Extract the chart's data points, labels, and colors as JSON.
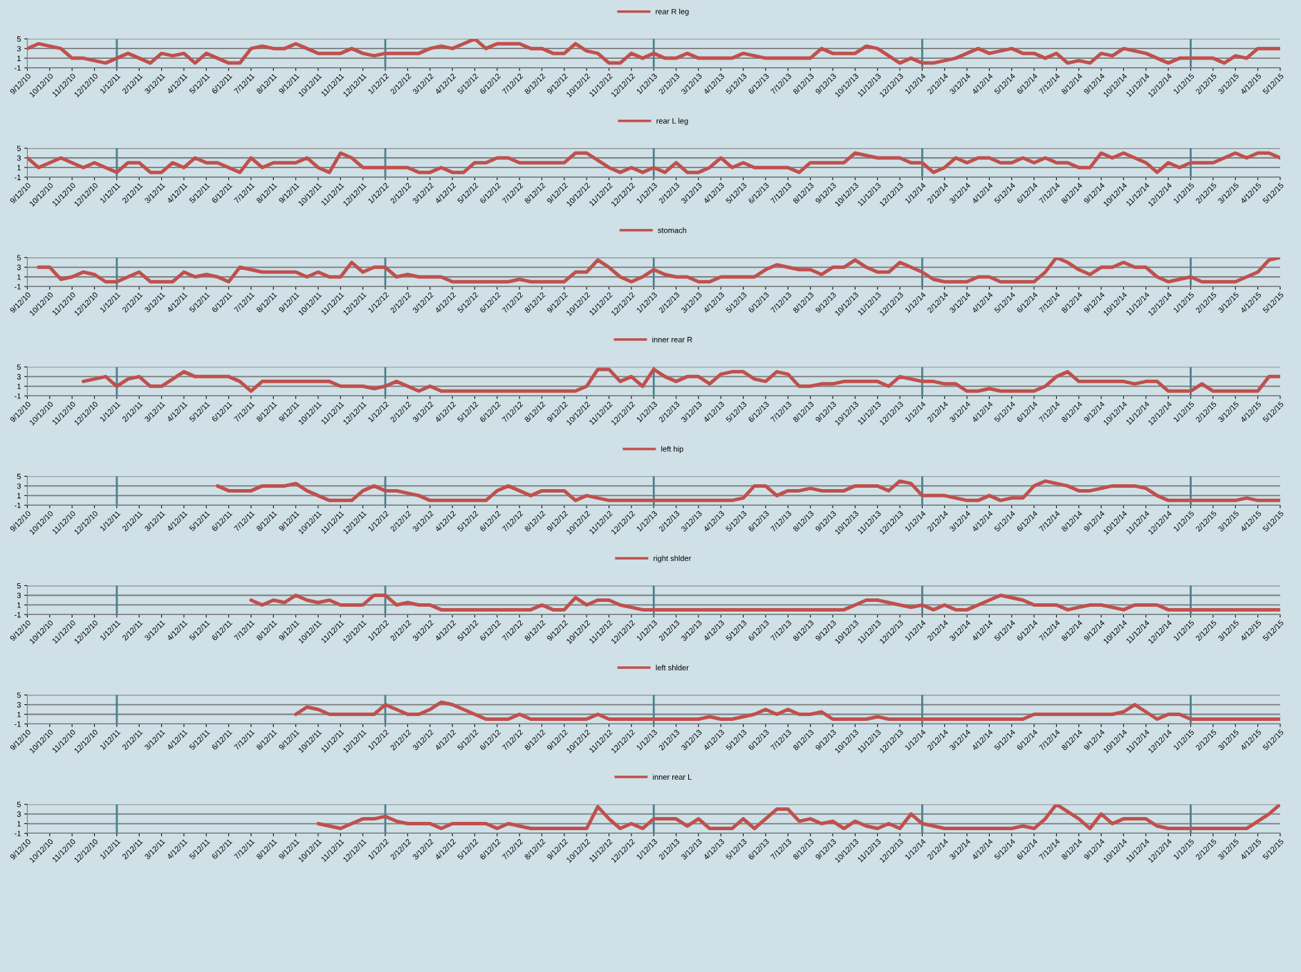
{
  "chart_data": [
    {
      "type": "line",
      "categories": [
        "9/12/10",
        null,
        "10/12/10",
        null,
        "11/12/10",
        null,
        "12/12/10",
        null,
        "1/12/11",
        null,
        "2/12/11",
        null,
        "3/12/11",
        null,
        "4/12/11",
        null,
        "5/12/11",
        null,
        "6/12/11",
        null,
        "7/12/11",
        null,
        "8/12/11",
        null,
        "9/12/11",
        null,
        "10/12/11",
        null,
        "11/12/11",
        null,
        "12/12/11",
        null,
        "1/12/12",
        null,
        "2/12/12",
        null,
        "3/12/12",
        null,
        "4/12/12",
        null,
        "5/12/12",
        null,
        "6/12/12",
        null,
        "7/12/12",
        null,
        "8/12/12",
        null,
        "9/12/12",
        null,
        "10/12/12",
        null,
        "11/12/12",
        null,
        "12/12/12",
        null,
        "1/12/13",
        null,
        "2/12/13",
        null,
        "3/12/13",
        null,
        "4/12/13",
        null,
        "5/12/13",
        null,
        "6/12/13",
        null,
        "7/12/13",
        null,
        "8/12/13",
        null,
        "9/12/13",
        null,
        "10/12/13",
        null,
        "11/12/13",
        null,
        "12/12/13",
        null,
        "1/12/14",
        null,
        "2/12/14",
        null,
        "3/12/14",
        null,
        "4/12/14",
        null,
        "5/12/14",
        null,
        "6/12/14",
        null,
        "7/12/14",
        null,
        "8/12/14",
        null,
        "9/12/14",
        null,
        "10/12/14",
        null,
        "11/12/14",
        null,
        "12/12/14",
        null,
        "1/12/15",
        null,
        "2/12/15",
        null,
        "3/12/15",
        null,
        "4/12/15",
        null,
        "5/12/15"
      ],
      "series": [
        {
          "name": "rear R leg",
          "color": "#c0504d",
          "values": [
            3,
            4,
            3.5,
            3,
            1,
            1,
            0.5,
            0,
            1,
            2,
            1,
            0,
            2,
            1.5,
            2,
            0,
            2,
            1,
            0,
            0,
            3,
            3.5,
            3,
            3,
            4,
            3,
            2,
            2,
            2,
            3,
            2,
            1.5,
            2,
            2,
            2,
            2,
            3,
            3.5,
            3,
            4,
            5,
            3,
            4,
            4,
            4,
            3,
            3,
            2,
            2,
            4,
            2.5,
            2,
            0,
            0,
            2,
            1,
            2,
            1,
            1,
            2,
            1,
            1,
            1,
            1,
            2,
            1.5,
            1,
            1,
            1,
            1,
            1,
            3,
            2,
            2,
            2,
            3.5,
            3,
            1.5,
            0,
            1,
            0,
            0,
            0.5,
            1,
            2,
            3,
            2,
            2.5,
            3,
            2,
            2,
            1,
            2,
            0,
            0.5,
            0,
            2,
            1.5,
            3,
            2.5,
            2,
            1,
            0,
            1,
            1,
            1,
            1,
            0,
            1.5,
            1,
            3,
            3,
            3
          ]
        }
      ],
      "ylim": [
        -1,
        5
      ],
      "yticks": [
        -1,
        1,
        3,
        5
      ],
      "grid": "y",
      "legend": "top",
      "ref_lines": [
        {
          "axis": "x",
          "value": "1/12/11"
        },
        {
          "axis": "x",
          "value": "1/12/12"
        },
        {
          "axis": "x",
          "value": "1/12/13"
        },
        {
          "axis": "x",
          "value": "1/12/14"
        },
        {
          "axis": "x",
          "value": "1/12/15"
        }
      ]
    },
    {
      "type": "line",
      "categories": [
        "9/12/10",
        null,
        "10/12/10",
        null,
        "11/12/10",
        null,
        "12/12/10",
        null,
        "1/12/11",
        null,
        "2/12/11",
        null,
        "3/12/11",
        null,
        "4/12/11",
        null,
        "5/12/11",
        null,
        "6/12/11",
        null,
        "7/12/11",
        null,
        "8/12/11",
        null,
        "9/12/11",
        null,
        "10/12/11",
        null,
        "11/12/11",
        null,
        "12/12/11",
        null,
        "1/12/12",
        null,
        "2/12/12",
        null,
        "3/12/12",
        null,
        "4/12/12",
        null,
        "5/12/12",
        null,
        "6/12/12",
        null,
        "7/12/12",
        null,
        "8/12/12",
        null,
        "9/12/12",
        null,
        "10/12/12",
        null,
        "11/12/12",
        null,
        "12/12/12",
        null,
        "1/12/13",
        null,
        "2/12/13",
        null,
        "3/12/13",
        null,
        "4/12/13",
        null,
        "5/12/13",
        null,
        "6/12/13",
        null,
        "7/12/13",
        null,
        "8/12/13",
        null,
        "9/12/13",
        null,
        "10/12/13",
        null,
        "11/12/13",
        null,
        "12/12/13",
        null,
        "1/12/14",
        null,
        "2/12/14",
        null,
        "3/12/14",
        null,
        "4/12/14",
        null,
        "5/12/14",
        null,
        "6/12/14",
        null,
        "7/12/14",
        null,
        "8/12/14",
        null,
        "9/12/14",
        null,
        "10/12/14",
        null,
        "11/12/14",
        null,
        "12/12/14",
        null,
        "1/12/15",
        null,
        "2/12/15",
        null,
        "3/12/15",
        null,
        "4/12/15",
        null,
        "5/12/15"
      ],
      "series": [
        {
          "name": "rear L leg",
          "color": "#c0504d",
          "values": [
            3,
            1,
            2,
            3,
            2,
            1,
            2,
            1,
            0,
            2,
            2,
            0,
            0,
            2,
            1,
            3,
            2,
            2,
            1,
            0,
            3,
            1,
            2,
            2,
            2,
            3,
            1,
            0,
            4,
            3,
            1,
            1,
            1,
            1,
            1,
            0,
            0,
            1,
            0,
            0,
            2,
            2,
            3,
            3,
            2,
            2,
            2,
            2,
            2,
            4,
            4,
            2.5,
            1,
            0,
            1,
            0,
            1,
            0,
            2,
            0,
            0,
            1,
            3,
            1,
            2,
            1,
            1,
            1,
            1,
            0,
            2,
            2,
            2,
            2,
            4,
            3.5,
            3,
            3,
            3,
            2,
            2,
            0,
            1,
            3,
            2,
            3,
            3,
            2,
            2,
            3,
            2,
            3,
            2,
            2,
            1,
            1,
            4,
            3,
            4,
            3,
            2,
            0,
            2,
            1,
            2,
            2,
            2,
            3,
            4,
            3,
            4,
            4,
            3
          ]
        }
      ],
      "ylim": [
        -1,
        5
      ],
      "yticks": [
        -1,
        1,
        3,
        5
      ],
      "grid": "y",
      "legend": "top",
      "ref_lines": [
        {
          "axis": "x",
          "value": "1/12/11"
        },
        {
          "axis": "x",
          "value": "1/12/12"
        },
        {
          "axis": "x",
          "value": "1/12/13"
        },
        {
          "axis": "x",
          "value": "1/12/14"
        },
        {
          "axis": "x",
          "value": "1/12/15"
        }
      ]
    },
    {
      "type": "line",
      "categories": [
        "9/12/10",
        null,
        "10/12/10",
        null,
        "11/12/10",
        null,
        "12/12/10",
        null,
        "1/12/11",
        null,
        "2/12/11",
        null,
        "3/12/11",
        null,
        "4/12/11",
        null,
        "5/12/11",
        null,
        "6/12/11",
        null,
        "7/12/11",
        null,
        "8/12/11",
        null,
        "9/12/11",
        null,
        "10/12/11",
        null,
        "11/12/11",
        null,
        "12/12/11",
        null,
        "1/12/12",
        null,
        "2/12/12",
        null,
        "3/12/12",
        null,
        "4/12/12",
        null,
        "5/12/12",
        null,
        "6/12/12",
        null,
        "7/12/12",
        null,
        "8/12/12",
        null,
        "9/12/12",
        null,
        "10/12/12",
        null,
        "11/12/12",
        null,
        "12/12/12",
        null,
        "1/12/13",
        null,
        "2/12/13",
        null,
        "3/12/13",
        null,
        "4/12/13",
        null,
        "5/12/13",
        null,
        "6/12/13",
        null,
        "7/12/13",
        null,
        "8/12/13",
        null,
        "9/12/13",
        null,
        "10/12/13",
        null,
        "11/12/13",
        null,
        "12/12/13",
        null,
        "1/12/14",
        null,
        "2/12/14",
        null,
        "3/12/14",
        null,
        "4/12/14",
        null,
        "5/12/14",
        null,
        "6/12/14",
        null,
        "7/12/14",
        null,
        "8/12/14",
        null,
        "9/12/14",
        null,
        "10/12/14",
        null,
        "11/12/14",
        null,
        "12/12/14",
        null,
        "1/12/15",
        null,
        "2/12/15",
        null,
        "3/12/15",
        null,
        "4/12/15",
        null,
        "5/12/15"
      ],
      "series": [
        {
          "name": "stomach",
          "color": "#c0504d",
          "values": [
            null,
            3,
            3,
            0.5,
            1,
            2,
            1.5,
            0,
            0,
            1,
            2,
            0,
            0,
            0,
            2,
            1,
            1.5,
            1,
            0,
            3,
            2.5,
            2,
            2,
            2,
            2,
            1,
            2,
            1,
            1,
            4,
            2,
            3,
            3,
            1,
            1.5,
            1,
            1,
            1,
            0,
            0,
            0,
            0,
            0,
            0,
            0.5,
            0,
            0,
            0,
            0,
            2,
            2,
            4.5,
            3,
            1,
            0,
            1,
            2.5,
            1.5,
            1,
            1,
            0,
            0,
            1,
            1,
            1,
            1,
            2.5,
            3.5,
            3,
            2.5,
            2.5,
            1.5,
            3,
            3,
            4.5,
            3,
            2,
            2,
            4,
            3,
            2,
            0.5,
            0,
            0,
            0,
            1,
            1,
            0,
            0,
            0,
            0,
            2,
            5,
            4,
            2.5,
            1.5,
            3,
            3,
            4,
            3,
            3,
            1,
            0,
            0.5,
            1,
            0,
            0,
            0,
            0,
            1,
            2,
            4.5,
            5
          ]
        }
      ],
      "ylim": [
        -1,
        5
      ],
      "yticks": [
        -1,
        1,
        3,
        5
      ],
      "grid": "y",
      "legend": "top",
      "ref_lines": [
        {
          "axis": "x",
          "value": "1/12/11"
        },
        {
          "axis": "x",
          "value": "1/12/12"
        },
        {
          "axis": "x",
          "value": "1/12/13"
        },
        {
          "axis": "x",
          "value": "1/12/14"
        },
        {
          "axis": "x",
          "value": "1/12/15"
        }
      ]
    },
    {
      "type": "line",
      "categories": [
        "9/12/10",
        null,
        "10/12/10",
        null,
        "11/12/10",
        null,
        "12/12/10",
        null,
        "1/12/11",
        null,
        "2/12/11",
        null,
        "3/12/11",
        null,
        "4/12/11",
        null,
        "5/12/11",
        null,
        "6/12/11",
        null,
        "7/12/11",
        null,
        "8/12/11",
        null,
        "9/12/11",
        null,
        "10/12/11",
        null,
        "11/12/11",
        null,
        "12/12/11",
        null,
        "1/12/12",
        null,
        "2/12/12",
        null,
        "3/12/12",
        null,
        "4/12/12",
        null,
        "5/12/12",
        null,
        "6/12/12",
        null,
        "7/12/12",
        null,
        "8/12/12",
        null,
        "9/12/12",
        null,
        "10/12/12",
        null,
        "11/12/12",
        null,
        "12/12/12",
        null,
        "1/12/13",
        null,
        "2/12/13",
        null,
        "3/12/13",
        null,
        "4/12/13",
        null,
        "5/12/13",
        null,
        "6/12/13",
        null,
        "7/12/13",
        null,
        "8/12/13",
        null,
        "9/12/13",
        null,
        "10/12/13",
        null,
        "11/12/13",
        null,
        "12/12/13",
        null,
        "1/12/14",
        null,
        "2/12/14",
        null,
        "3/12/14",
        null,
        "4/12/14",
        null,
        "5/12/14",
        null,
        "6/12/14",
        null,
        "7/12/14",
        null,
        "8/12/14",
        null,
        "9/12/14",
        null,
        "10/12/14",
        null,
        "11/12/14",
        null,
        "12/12/14",
        null,
        "1/12/15",
        null,
        "2/12/15",
        null,
        "3/12/15",
        null,
        "4/12/15",
        null,
        "5/12/15"
      ],
      "series": [
        {
          "name": "inner rear R",
          "color": "#c0504d",
          "values": [
            null,
            null,
            null,
            null,
            null,
            2,
            2.5,
            3,
            1,
            2.5,
            3,
            1,
            1,
            2.5,
            4,
            3,
            3,
            3,
            3,
            2,
            0,
            2,
            2,
            2,
            2,
            2,
            2,
            2,
            1,
            1,
            1,
            0.5,
            1,
            2,
            1,
            0,
            1,
            0,
            0,
            0,
            0,
            0,
            0,
            0,
            0,
            0,
            0,
            0,
            0,
            0,
            1,
            4.5,
            4.5,
            2,
            3,
            1,
            4.5,
            3,
            2,
            3,
            3,
            1.5,
            3.5,
            4,
            4,
            2.5,
            2,
            4,
            3.5,
            1,
            1,
            1.5,
            1.5,
            2,
            2,
            2,
            2,
            1,
            3,
            2.5,
            2,
            2,
            1.5,
            1.5,
            0,
            0,
            0.5,
            0,
            0,
            0,
            0,
            1,
            3,
            4,
            2,
            2,
            2,
            2,
            2,
            1.5,
            2,
            2,
            0,
            0,
            0,
            1.5,
            0,
            0,
            0,
            0,
            0,
            3,
            3
          ]
        }
      ],
      "ylim": [
        -1,
        5
      ],
      "yticks": [
        -1,
        1,
        3,
        5
      ],
      "grid": "y",
      "legend": "top",
      "ref_lines": [
        {
          "axis": "x",
          "value": "1/12/11"
        },
        {
          "axis": "x",
          "value": "1/12/12"
        },
        {
          "axis": "x",
          "value": "1/12/13"
        },
        {
          "axis": "x",
          "value": "1/12/14"
        },
        {
          "axis": "x",
          "value": "1/12/15"
        }
      ]
    },
    {
      "type": "line",
      "categories": [
        "9/12/10",
        null,
        "10/12/10",
        null,
        "11/12/10",
        null,
        "12/12/10",
        null,
        "1/12/11",
        null,
        "2/12/11",
        null,
        "3/12/11",
        null,
        "4/12/11",
        null,
        "5/12/11",
        null,
        "6/12/11",
        null,
        "7/12/11",
        null,
        "8/12/11",
        null,
        "9/12/11",
        null,
        "10/12/11",
        null,
        "11/12/11",
        null,
        "12/12/11",
        null,
        "1/12/12",
        null,
        "2/12/12",
        null,
        "3/12/12",
        null,
        "4/12/12",
        null,
        "5/12/12",
        null,
        "6/12/12",
        null,
        "7/12/12",
        null,
        "8/12/12",
        null,
        "9/12/12",
        null,
        "10/12/12",
        null,
        "11/12/12",
        null,
        "12/12/12",
        null,
        "1/12/13",
        null,
        "2/12/13",
        null,
        "3/12/13",
        null,
        "4/12/13",
        null,
        "5/12/13",
        null,
        "6/12/13",
        null,
        "7/12/13",
        null,
        "8/12/13",
        null,
        "9/12/13",
        null,
        "10/12/13",
        null,
        "11/12/13",
        null,
        "12/12/13",
        null,
        "1/12/14",
        null,
        "2/12/14",
        null,
        "3/12/14",
        null,
        "4/12/14",
        null,
        "5/12/14",
        null,
        "6/12/14",
        null,
        "7/12/14",
        null,
        "8/12/14",
        null,
        "9/12/14",
        null,
        "10/12/14",
        null,
        "11/12/14",
        null,
        "12/12/14",
        null,
        "1/12/15",
        null,
        "2/12/15",
        null,
        "3/12/15",
        null,
        "4/12/15",
        null,
        "5/12/15"
      ],
      "series": [
        {
          "name": "left hip",
          "color": "#c0504d",
          "values": [
            null,
            null,
            null,
            null,
            null,
            null,
            null,
            null,
            null,
            null,
            null,
            null,
            null,
            null,
            null,
            null,
            null,
            3,
            2,
            2,
            2,
            3,
            3,
            3,
            3.5,
            2,
            1,
            0,
            0,
            0,
            2,
            3,
            2,
            2,
            1.5,
            1,
            0,
            0,
            0,
            0,
            0,
            0,
            2,
            3,
            2,
            1,
            2,
            2,
            2,
            0,
            1,
            0.5,
            0,
            0,
            0,
            0,
            0,
            0,
            0,
            0,
            0,
            0,
            0,
            0,
            0.5,
            3,
            3,
            1,
            2,
            2,
            2.5,
            2,
            2,
            2,
            3,
            3,
            3,
            2,
            4,
            3.5,
            1,
            1,
            1,
            0.5,
            0,
            0,
            1,
            0,
            0.5,
            0.5,
            3,
            4,
            3.5,
            3,
            2,
            2,
            2.5,
            3,
            3,
            3,
            2.5,
            1,
            0,
            0,
            0,
            0,
            0,
            0,
            0,
            0.5,
            0,
            0,
            0
          ]
        }
      ],
      "ylim": [
        -1,
        5
      ],
      "yticks": [
        -1,
        1,
        3,
        5
      ],
      "grid": "y",
      "legend": "top",
      "ref_lines": [
        {
          "axis": "x",
          "value": "1/12/11"
        },
        {
          "axis": "x",
          "value": "1/12/12"
        },
        {
          "axis": "x",
          "value": "1/12/13"
        },
        {
          "axis": "x",
          "value": "1/12/14"
        },
        {
          "axis": "x",
          "value": "1/12/15"
        }
      ]
    },
    {
      "type": "line",
      "categories": [
        "9/12/10",
        null,
        "10/12/10",
        null,
        "11/12/10",
        null,
        "12/12/10",
        null,
        "1/12/11",
        null,
        "2/12/11",
        null,
        "3/12/11",
        null,
        "4/12/11",
        null,
        "5/12/11",
        null,
        "6/12/11",
        null,
        "7/12/11",
        null,
        "8/12/11",
        null,
        "9/12/11",
        null,
        "10/12/11",
        null,
        "11/12/11",
        null,
        "12/12/11",
        null,
        "1/12/12",
        null,
        "2/12/12",
        null,
        "3/12/12",
        null,
        "4/12/12",
        null,
        "5/12/12",
        null,
        "6/12/12",
        null,
        "7/12/12",
        null,
        "8/12/12",
        null,
        "9/12/12",
        null,
        "10/12/12",
        null,
        "11/12/12",
        null,
        "12/12/12",
        null,
        "1/12/13",
        null,
        "2/12/13",
        null,
        "3/12/13",
        null,
        "4/12/13",
        null,
        "5/12/13",
        null,
        "6/12/13",
        null,
        "7/12/13",
        null,
        "8/12/13",
        null,
        "9/12/13",
        null,
        "10/12/13",
        null,
        "11/12/13",
        null,
        "12/12/13",
        null,
        "1/12/14",
        null,
        "2/12/14",
        null,
        "3/12/14",
        null,
        "4/12/14",
        null,
        "5/12/14",
        null,
        "6/12/14",
        null,
        "7/12/14",
        null,
        "8/12/14",
        null,
        "9/12/14",
        null,
        "10/12/14",
        null,
        "11/12/14",
        null,
        "12/12/14",
        null,
        "1/12/15",
        null,
        "2/12/15",
        null,
        "3/12/15",
        null,
        "4/12/15",
        null,
        "5/12/15"
      ],
      "series": [
        {
          "name": "right shlder",
          "color": "#c0504d",
          "values": [
            null,
            null,
            null,
            null,
            null,
            null,
            null,
            null,
            null,
            null,
            null,
            null,
            null,
            null,
            null,
            null,
            null,
            null,
            null,
            null,
            2,
            1,
            2,
            1.5,
            3,
            2,
            1.5,
            2,
            1,
            1,
            1,
            3,
            3,
            1,
            1.5,
            1,
            1,
            0,
            0,
            0,
            0,
            0,
            0,
            0,
            0,
            0,
            1,
            0,
            0,
            2.5,
            1,
            2,
            2,
            1,
            0.5,
            0,
            0,
            0,
            0,
            0,
            0,
            0,
            0,
            0,
            0,
            0,
            0,
            0,
            0,
            0,
            0,
            0,
            0,
            0,
            1,
            2,
            2,
            1.5,
            1,
            0.5,
            1,
            0,
            1,
            0,
            0,
            1,
            2,
            3,
            2.5,
            2,
            1,
            1,
            1,
            0,
            0.5,
            1,
            1,
            0.5,
            0,
            1,
            1,
            1,
            0,
            0,
            0,
            0,
            0,
            0,
            0,
            0,
            0,
            0,
            0
          ]
        }
      ],
      "ylim": [
        -1,
        5
      ],
      "yticks": [
        -1,
        1,
        3,
        5
      ],
      "grid": "y",
      "legend": "top",
      "ref_lines": [
        {
          "axis": "x",
          "value": "1/12/11"
        },
        {
          "axis": "x",
          "value": "1/12/12"
        },
        {
          "axis": "x",
          "value": "1/12/13"
        },
        {
          "axis": "x",
          "value": "1/12/14"
        },
        {
          "axis": "x",
          "value": "1/12/15"
        }
      ]
    },
    {
      "type": "line",
      "categories": [
        "9/12/10",
        null,
        "10/12/10",
        null,
        "11/12/10",
        null,
        "12/12/10",
        null,
        "1/12/11",
        null,
        "2/12/11",
        null,
        "3/12/11",
        null,
        "4/12/11",
        null,
        "5/12/11",
        null,
        "6/12/11",
        null,
        "7/12/11",
        null,
        "8/12/11",
        null,
        "9/12/11",
        null,
        "10/12/11",
        null,
        "11/12/11",
        null,
        "12/12/11",
        null,
        "1/12/12",
        null,
        "2/12/12",
        null,
        "3/12/12",
        null,
        "4/12/12",
        null,
        "5/12/12",
        null,
        "6/12/12",
        null,
        "7/12/12",
        null,
        "8/12/12",
        null,
        "9/12/12",
        null,
        "10/12/12",
        null,
        "11/12/12",
        null,
        "12/12/12",
        null,
        "1/12/13",
        null,
        "2/12/13",
        null,
        "3/12/13",
        null,
        "4/12/13",
        null,
        "5/12/13",
        null,
        "6/12/13",
        null,
        "7/12/13",
        null,
        "8/12/13",
        null,
        "9/12/13",
        null,
        "10/12/13",
        null,
        "11/12/13",
        null,
        "12/12/13",
        null,
        "1/12/14",
        null,
        "2/12/14",
        null,
        "3/12/14",
        null,
        "4/12/14",
        null,
        "5/12/14",
        null,
        "6/12/14",
        null,
        "7/12/14",
        null,
        "8/12/14",
        null,
        "9/12/14",
        null,
        "10/12/14",
        null,
        "11/12/14",
        null,
        "12/12/14",
        null,
        "1/12/15",
        null,
        "2/12/15",
        null,
        "3/12/15",
        null,
        "4/12/15",
        null,
        "5/12/15"
      ],
      "series": [
        {
          "name": "left shlder",
          "color": "#c0504d",
          "values": [
            null,
            null,
            null,
            null,
            null,
            null,
            null,
            null,
            null,
            null,
            null,
            null,
            null,
            null,
            null,
            null,
            null,
            null,
            null,
            null,
            null,
            null,
            null,
            null,
            1,
            2.5,
            2,
            1,
            1,
            1,
            1,
            1,
            3,
            2,
            1,
            1,
            2,
            3.5,
            3,
            2,
            1,
            0,
            0,
            0,
            1,
            0,
            0,
            0,
            0,
            0,
            0,
            1,
            0,
            0,
            0,
            0,
            0,
            0,
            0,
            0,
            0,
            0.5,
            0,
            0,
            0.5,
            1,
            2,
            1,
            2,
            1,
            1,
            1.5,
            0,
            0,
            0,
            0,
            0.5,
            0,
            0,
            0,
            0,
            0,
            0,
            0,
            0,
            0,
            0,
            0,
            0,
            0,
            1,
            1,
            1,
            1,
            1,
            1,
            1,
            1,
            1.5,
            3,
            1.5,
            0,
            1,
            1,
            0,
            0,
            0,
            0,
            0,
            0,
            0,
            0,
            0
          ]
        }
      ],
      "ylim": [
        -1,
        5
      ],
      "yticks": [
        -1,
        1,
        3,
        5
      ],
      "grid": "y",
      "legend": "top",
      "ref_lines": [
        {
          "axis": "x",
          "value": "1/12/11"
        },
        {
          "axis": "x",
          "value": "1/12/12"
        },
        {
          "axis": "x",
          "value": "1/12/13"
        },
        {
          "axis": "x",
          "value": "1/12/14"
        },
        {
          "axis": "x",
          "value": "1/12/15"
        }
      ]
    },
    {
      "type": "line",
      "categories": [
        "9/12/10",
        null,
        "10/12/10",
        null,
        "11/12/10",
        null,
        "12/12/10",
        null,
        "1/12/11",
        null,
        "2/12/11",
        null,
        "3/12/11",
        null,
        "4/12/11",
        null,
        "5/12/11",
        null,
        "6/12/11",
        null,
        "7/12/11",
        null,
        "8/12/11",
        null,
        "9/12/11",
        null,
        "10/12/11",
        null,
        "11/12/11",
        null,
        "12/12/11",
        null,
        "1/12/12",
        null,
        "2/12/12",
        null,
        "3/12/12",
        null,
        "4/12/12",
        null,
        "5/12/12",
        null,
        "6/12/12",
        null,
        "7/12/12",
        null,
        "8/12/12",
        null,
        "9/12/12",
        null,
        "10/12/12",
        null,
        "11/12/12",
        null,
        "12/12/12",
        null,
        "1/12/13",
        null,
        "2/12/13",
        null,
        "3/12/13",
        null,
        "4/12/13",
        null,
        "5/12/13",
        null,
        "6/12/13",
        null,
        "7/12/13",
        null,
        "8/12/13",
        null,
        "9/12/13",
        null,
        "10/12/13",
        null,
        "11/12/13",
        null,
        "12/12/13",
        null,
        "1/12/14",
        null,
        "2/12/14",
        null,
        "3/12/14",
        null,
        "4/12/14",
        null,
        "5/12/14",
        null,
        "6/12/14",
        null,
        "7/12/14",
        null,
        "8/12/14",
        null,
        "9/12/14",
        null,
        "10/12/14",
        null,
        "11/12/14",
        null,
        "12/12/14",
        null,
        "1/12/15",
        null,
        "2/12/15",
        null,
        "3/12/15",
        null,
        "4/12/15",
        null,
        "5/12/15"
      ],
      "series": [
        {
          "name": "inner rear L",
          "color": "#c0504d",
          "values": [
            null,
            null,
            null,
            null,
            null,
            null,
            null,
            null,
            null,
            null,
            null,
            null,
            null,
            null,
            null,
            null,
            null,
            null,
            null,
            null,
            null,
            null,
            null,
            null,
            null,
            null,
            1,
            0.5,
            0,
            1,
            2,
            2,
            2.5,
            1.5,
            1,
            1,
            1,
            0,
            1,
            1,
            1,
            1,
            0,
            1,
            0.5,
            0,
            0,
            0,
            0,
            0,
            0,
            4.5,
            2,
            0,
            1,
            0,
            2,
            2,
            2,
            0.5,
            2,
            0,
            0,
            0,
            2,
            0,
            2,
            4,
            4,
            1.5,
            2,
            1,
            1.5,
            0,
            1.5,
            0.5,
            0,
            1,
            0,
            3,
            1,
            0.5,
            0,
            0,
            0,
            0,
            0,
            0,
            0,
            0.5,
            0,
            2,
            5,
            3.5,
            2,
            0,
            3,
            1,
            2,
            2,
            2,
            0.5,
            0,
            0,
            0,
            0,
            0,
            0,
            0,
            0,
            1.5,
            3,
            5
          ]
        }
      ],
      "ylim": [
        -1,
        5
      ],
      "yticks": [
        -1,
        1,
        3,
        5
      ],
      "grid": "y",
      "legend": "top",
      "ref_lines": [
        {
          "axis": "x",
          "value": "1/12/11"
        },
        {
          "axis": "x",
          "value": "1/12/12"
        },
        {
          "axis": "x",
          "value": "1/12/13"
        },
        {
          "axis": "x",
          "value": "1/12/14"
        },
        {
          "axis": "x",
          "value": "1/12/15"
        }
      ]
    }
  ]
}
